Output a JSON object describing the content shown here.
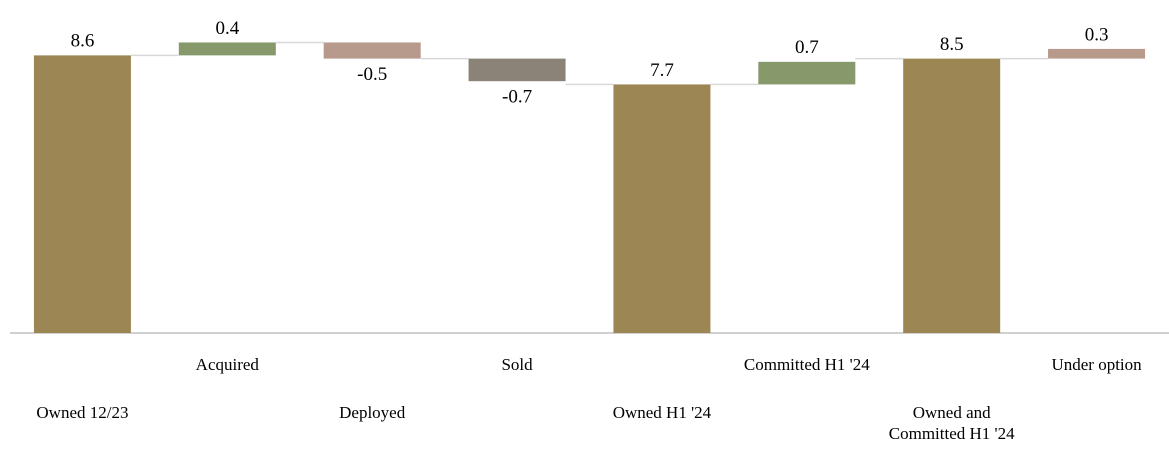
{
  "chart_data": {
    "type": "waterfall",
    "categories": [
      "Owned 12/23",
      "Acquired",
      "Deployed",
      "Sold",
      "Owned H1 '24",
      "Committed  H1 '24",
      "Owned and Committed  H1 '24",
      "Under option"
    ],
    "values": [
      8.6,
      0.4,
      -0.5,
      -0.7,
      7.7,
      0.7,
      8.5,
      0.3
    ],
    "is_total": [
      true,
      false,
      false,
      false,
      true,
      false,
      true,
      false
    ],
    "colors": [
      "#9c8754",
      "#87996b",
      "#b89a8c",
      "#8b8378",
      "#9c8754",
      "#87996b",
      "#9c8754",
      "#b89a8c"
    ],
    "ylim": [
      0,
      9.2
    ]
  }
}
